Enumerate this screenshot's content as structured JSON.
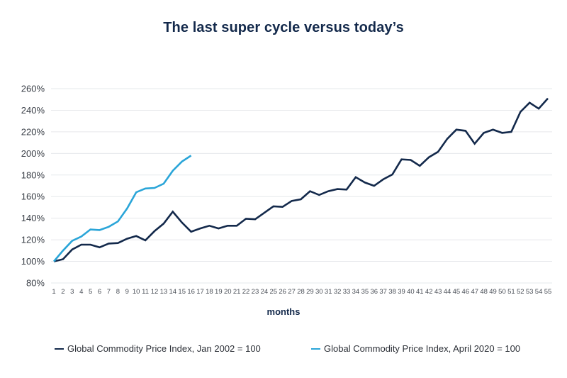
{
  "chart_data": {
    "type": "line",
    "title": "The last super cycle versus today’s",
    "xlabel": "months",
    "ylabel": "",
    "ylim": [
      80,
      260
    ],
    "yticks": [
      80,
      100,
      120,
      140,
      160,
      180,
      200,
      220,
      240,
      260
    ],
    "ytick_labels": [
      "80%",
      "100%",
      "120%",
      "140%",
      "160%",
      "180%",
      "200%",
      "220%",
      "240%",
      "260%"
    ],
    "x": [
      1,
      2,
      3,
      4,
      5,
      6,
      7,
      8,
      9,
      10,
      11,
      12,
      13,
      14,
      15,
      16,
      17,
      18,
      19,
      20,
      21,
      22,
      23,
      24,
      25,
      26,
      27,
      28,
      29,
      30,
      31,
      32,
      33,
      34,
      35,
      36,
      37,
      38,
      39,
      40,
      41,
      42,
      43,
      44,
      45,
      46,
      47,
      48,
      49,
      50,
      51,
      52,
      53,
      54,
      55
    ],
    "xlim": [
      1,
      55
    ],
    "grid": "horizontal",
    "legend_position": "bottom",
    "series": [
      {
        "name": "Global Commodity Price Index, Jan 2002 = 100",
        "color": "#13294b",
        "values": [
          100,
          102,
          111,
          115.5,
          115.5,
          113,
          116.5,
          117,
          121,
          123.5,
          119.5,
          128,
          135,
          146,
          136,
          127.5,
          130.5,
          133,
          130.5,
          133,
          133,
          139.5,
          139,
          145,
          151,
          150.5,
          156,
          157.5,
          165,
          161.5,
          165,
          167,
          166.5,
          178,
          173,
          170,
          176,
          180.5,
          194.5,
          194,
          188.5,
          196.5,
          201.5,
          213.5,
          222,
          221,
          209,
          219,
          222,
          219,
          220,
          238.5,
          247,
          241.5,
          251
        ]
      },
      {
        "name": "Global Commodity Price Index, April 2020 = 100",
        "color": "#2aa5d8",
        "values": [
          100,
          110,
          119,
          123,
          129.5,
          129,
          132,
          137,
          149,
          164,
          167.5,
          168,
          172,
          184,
          192.5,
          198
        ]
      }
    ]
  }
}
